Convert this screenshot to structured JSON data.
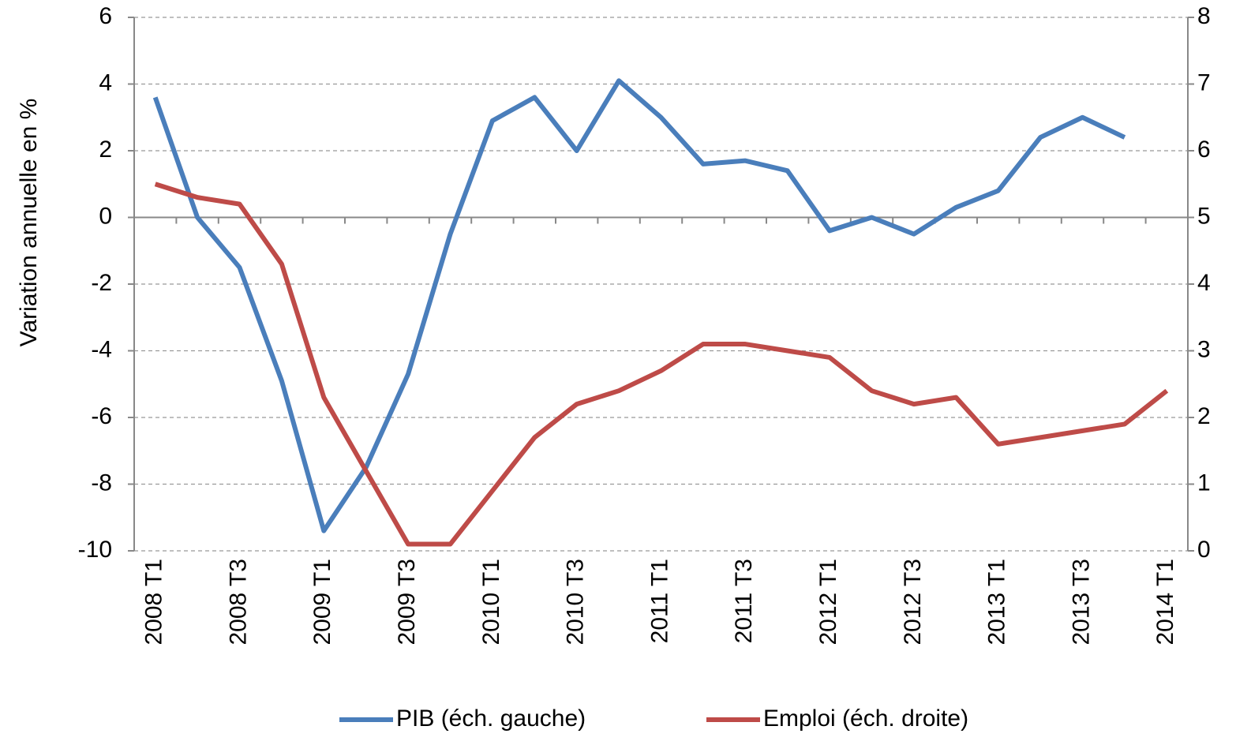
{
  "chart_data": {
    "type": "line",
    "y_label": "Variation annuelle en %",
    "categories": [
      "2008 T1",
      null,
      "2008 T3",
      null,
      "2009 T1",
      null,
      "2009 T3",
      null,
      "2010 T1",
      null,
      "2010 T3",
      null,
      "2011 T1",
      null,
      "2011 T3",
      null,
      "2012 T1",
      null,
      "2012 T3",
      null,
      "2013 T1",
      null,
      "2013 T3",
      null,
      "2014 T1"
    ],
    "series": [
      {
        "name": "PIB (éch. gauche)",
        "color": "#4a7ebb",
        "axis": "y",
        "values": [
          3.6,
          0.0,
          -1.5,
          -4.9,
          -9.4,
          -7.5,
          -4.7,
          -0.5,
          2.9,
          3.6,
          2.0,
          4.1,
          3.0,
          1.6,
          1.7,
          1.4,
          -0.4,
          0.0,
          -0.5,
          0.3,
          0.8,
          2.4,
          3.0,
          2.4,
          null
        ]
      },
      {
        "name": "Emploi (éch. droite)",
        "color": "#be4b48",
        "axis": "y2",
        "values": [
          5.5,
          5.3,
          5.2,
          4.3,
          2.3,
          1.2,
          0.1,
          0.1,
          0.9,
          1.7,
          2.2,
          2.4,
          2.7,
          3.1,
          3.1,
          3.0,
          2.9,
          2.4,
          2.2,
          2.3,
          1.6,
          1.7,
          1.8,
          1.9,
          2.4
        ]
      }
    ],
    "ylim": [
      -10,
      6
    ],
    "yticks": [
      -10,
      -8,
      -6,
      -4,
      -2,
      0,
      2,
      4,
      6
    ],
    "y2lim": [
      0,
      8
    ],
    "y2ticks": [
      0,
      1,
      2,
      3,
      4,
      5,
      6,
      7,
      8
    ],
    "grid": true,
    "legend": "bottom"
  }
}
